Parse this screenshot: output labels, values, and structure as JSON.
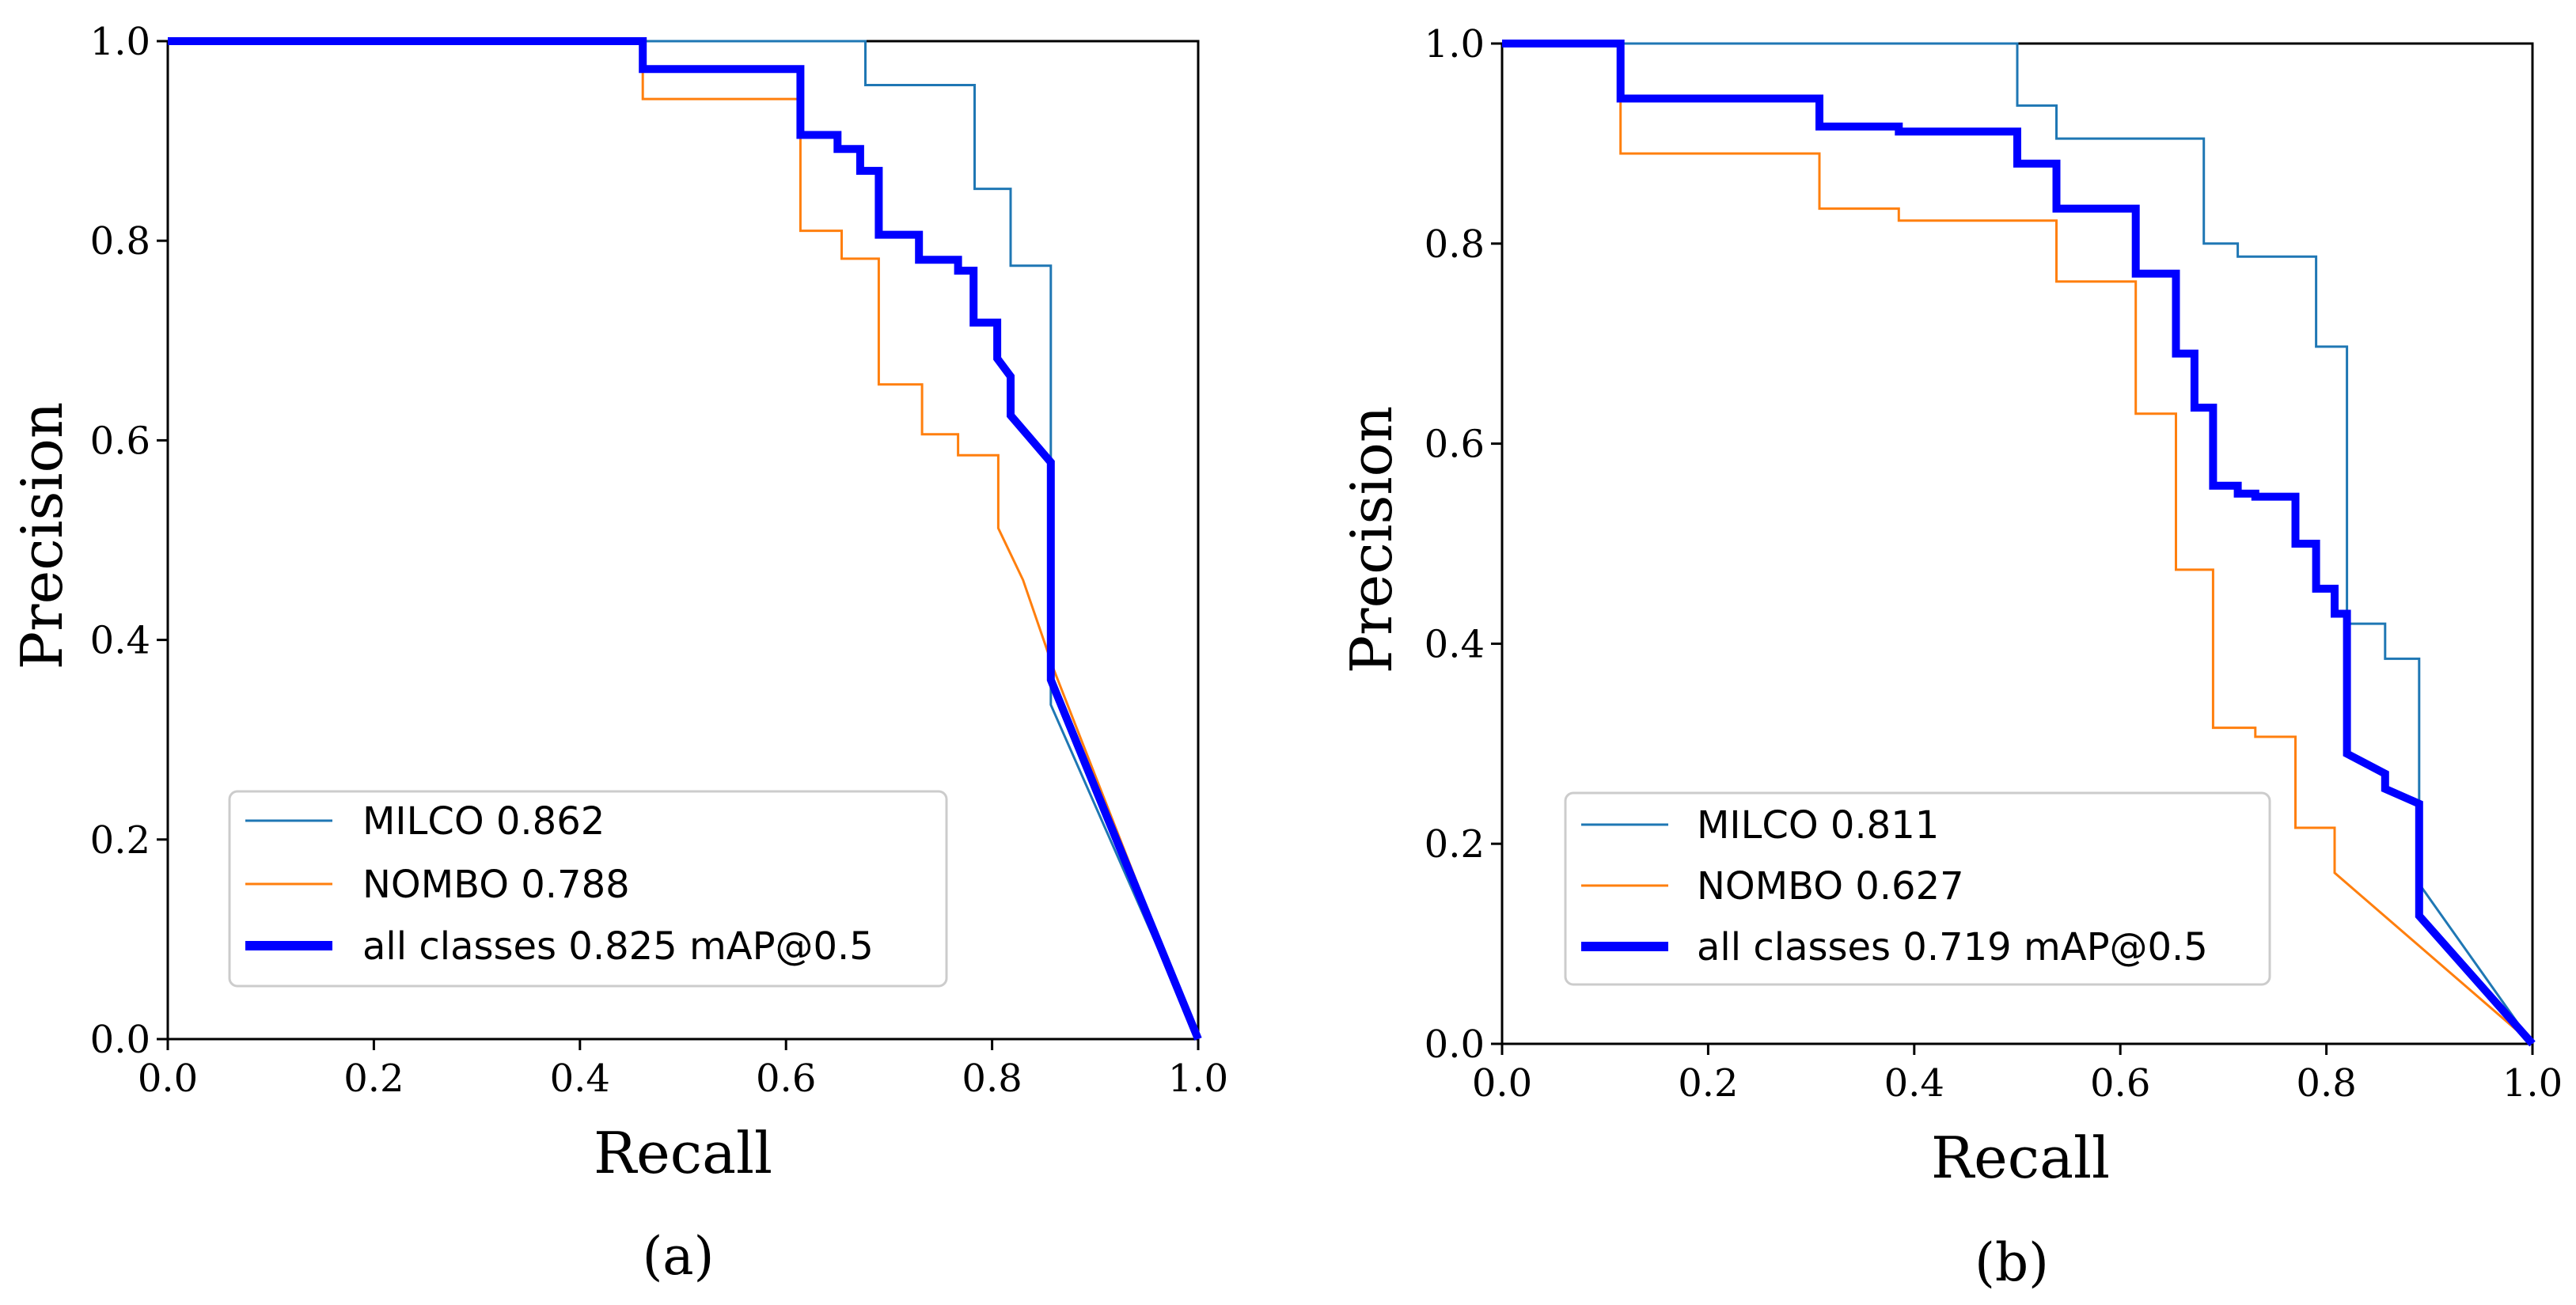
{
  "chart_data": [
    {
      "type": "line",
      "panel": "(a)",
      "xlabel": "Recall",
      "ylabel": "Precision",
      "xlim": [
        0,
        1
      ],
      "ylim": [
        0,
        1
      ],
      "xticks": [
        "0.0",
        "0.2",
        "0.4",
        "0.6",
        "0.8",
        "1.0"
      ],
      "yticks": [
        "0.0",
        "0.2",
        "0.4",
        "0.6",
        "0.8",
        "1.0"
      ],
      "legend_position": "lower-left",
      "series": [
        {
          "name": "MILCO",
          "legend_label": "MILCO 0.862",
          "color": "#1f77b4",
          "style": "thin",
          "points": [
            [
              0,
              1
            ],
            [
              0.677,
              1
            ],
            [
              0.677,
              0.956
            ],
            [
              0.783,
              0.956
            ],
            [
              0.783,
              0.852
            ],
            [
              0.818,
              0.852
            ],
            [
              0.818,
              0.775
            ],
            [
              0.857,
              0.775
            ],
            [
              0.857,
              0.335
            ],
            [
              1.0,
              0.0
            ]
          ]
        },
        {
          "name": "NOMBO",
          "legend_label": "NOMBO 0.788",
          "color": "#ff7f0e",
          "style": "thin",
          "points": [
            [
              0,
              1
            ],
            [
              0.461,
              1
            ],
            [
              0.461,
              0.942
            ],
            [
              0.614,
              0.942
            ],
            [
              0.614,
              0.81
            ],
            [
              0.654,
              0.81
            ],
            [
              0.654,
              0.782
            ],
            [
              0.69,
              0.782
            ],
            [
              0.69,
              0.656
            ],
            [
              0.732,
              0.656
            ],
            [
              0.732,
              0.606
            ],
            [
              0.767,
              0.606
            ],
            [
              0.767,
              0.585
            ],
            [
              0.806,
              0.585
            ],
            [
              0.806,
              0.512
            ],
            [
              0.83,
              0.46
            ],
            [
              0.86,
              0.37
            ],
            [
              1.0,
              0.0
            ]
          ]
        },
        {
          "name": "all classes",
          "legend_label": "all classes 0.825 mAP@0.5",
          "color": "#0000ff",
          "style": "thick",
          "points": [
            [
              0,
              1
            ],
            [
              0.461,
              1
            ],
            [
              0.461,
              0.972
            ],
            [
              0.614,
              0.972
            ],
            [
              0.614,
              0.906
            ],
            [
              0.65,
              0.906
            ],
            [
              0.65,
              0.892
            ],
            [
              0.672,
              0.892
            ],
            [
              0.672,
              0.87
            ],
            [
              0.69,
              0.87
            ],
            [
              0.69,
              0.806
            ],
            [
              0.729,
              0.806
            ],
            [
              0.729,
              0.781
            ],
            [
              0.767,
              0.781
            ],
            [
              0.767,
              0.77
            ],
            [
              0.782,
              0.77
            ],
            [
              0.782,
              0.718
            ],
            [
              0.805,
              0.718
            ],
            [
              0.805,
              0.682
            ],
            [
              0.818,
              0.664
            ],
            [
              0.818,
              0.625
            ],
            [
              0.857,
              0.578
            ],
            [
              0.857,
              0.36
            ],
            [
              1.0,
              0.0
            ]
          ]
        }
      ]
    },
    {
      "type": "line",
      "panel": "(b)",
      "xlabel": "Recall",
      "ylabel": "Precision",
      "xlim": [
        0,
        1
      ],
      "ylim": [
        0,
        1
      ],
      "xticks": [
        "0.0",
        "0.2",
        "0.4",
        "0.6",
        "0.8",
        "1.0"
      ],
      "yticks": [
        "0.0",
        "0.2",
        "0.4",
        "0.6",
        "0.8",
        "1.0"
      ],
      "legend_position": "lower-left",
      "series": [
        {
          "name": "MILCO",
          "legend_label": "MILCO 0.811",
          "color": "#1f77b4",
          "style": "thin",
          "points": [
            [
              0,
              1
            ],
            [
              0.5,
              1
            ],
            [
              0.5,
              0.938
            ],
            [
              0.538,
              0.938
            ],
            [
              0.538,
              0.905
            ],
            [
              0.681,
              0.905
            ],
            [
              0.681,
              0.8
            ],
            [
              0.714,
              0.8
            ],
            [
              0.714,
              0.787
            ],
            [
              0.79,
              0.787
            ],
            [
              0.79,
              0.697
            ],
            [
              0.82,
              0.697
            ],
            [
              0.82,
              0.42
            ],
            [
              0.857,
              0.42
            ],
            [
              0.857,
              0.385
            ],
            [
              0.89,
              0.385
            ],
            [
              0.89,
              0.16
            ],
            [
              1.0,
              0.0
            ]
          ]
        },
        {
          "name": "NOMBO",
          "legend_label": "NOMBO 0.627",
          "color": "#ff7f0e",
          "style": "thin",
          "points": [
            [
              0,
              1
            ],
            [
              0.115,
              1
            ],
            [
              0.115,
              0.89
            ],
            [
              0.308,
              0.89
            ],
            [
              0.308,
              0.835
            ],
            [
              0.385,
              0.835
            ],
            [
              0.385,
              0.823
            ],
            [
              0.538,
              0.823
            ],
            [
              0.538,
              0.762
            ],
            [
              0.615,
              0.762
            ],
            [
              0.615,
              0.63
            ],
            [
              0.654,
              0.63
            ],
            [
              0.654,
              0.474
            ],
            [
              0.69,
              0.474
            ],
            [
              0.69,
              0.316
            ],
            [
              0.731,
              0.316
            ],
            [
              0.731,
              0.307
            ],
            [
              0.77,
              0.307
            ],
            [
              0.77,
              0.216
            ],
            [
              0.808,
              0.216
            ],
            [
              0.808,
              0.171
            ],
            [
              1.0,
              0.0
            ]
          ]
        },
        {
          "name": "all classes",
          "legend_label": "all classes 0.719 mAP@0.5",
          "color": "#0000ff",
          "style": "thick",
          "points": [
            [
              0,
              1
            ],
            [
              0.115,
              1
            ],
            [
              0.115,
              0.945
            ],
            [
              0.308,
              0.945
            ],
            [
              0.308,
              0.917
            ],
            [
              0.385,
              0.917
            ],
            [
              0.385,
              0.912
            ],
            [
              0.5,
              0.912
            ],
            [
              0.5,
              0.88
            ],
            [
              0.538,
              0.88
            ],
            [
              0.538,
              0.835
            ],
            [
              0.615,
              0.835
            ],
            [
              0.615,
              0.77
            ],
            [
              0.654,
              0.77
            ],
            [
              0.654,
              0.69
            ],
            [
              0.672,
              0.69
            ],
            [
              0.672,
              0.636
            ],
            [
              0.69,
              0.636
            ],
            [
              0.69,
              0.558
            ],
            [
              0.714,
              0.558
            ],
            [
              0.714,
              0.55
            ],
            [
              0.731,
              0.55
            ],
            [
              0.731,
              0.547
            ],
            [
              0.77,
              0.547
            ],
            [
              0.77,
              0.5
            ],
            [
              0.79,
              0.5
            ],
            [
              0.79,
              0.455
            ],
            [
              0.808,
              0.455
            ],
            [
              0.808,
              0.43
            ],
            [
              0.82,
              0.43
            ],
            [
              0.82,
              0.29
            ],
            [
              0.857,
              0.27
            ],
            [
              0.857,
              0.255
            ],
            [
              0.89,
              0.24
            ],
            [
              0.89,
              0.128
            ],
            [
              1.0,
              0.0
            ]
          ]
        }
      ]
    }
  ]
}
